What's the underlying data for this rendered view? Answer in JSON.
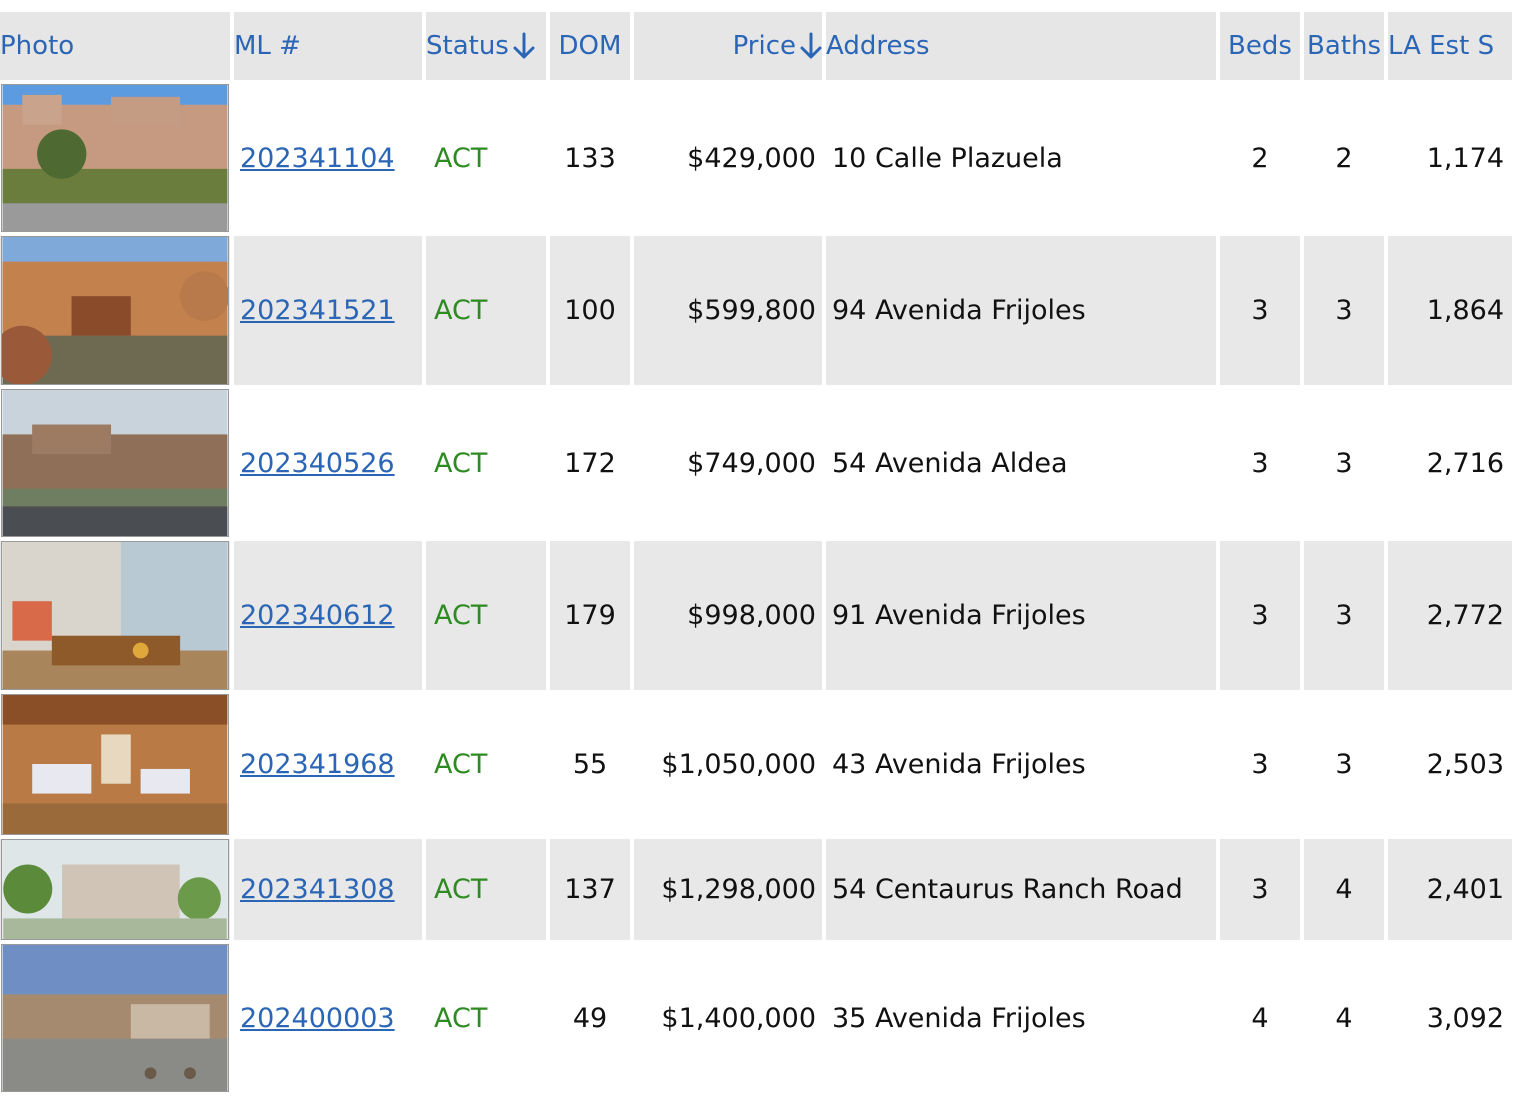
{
  "columns": {
    "photo": "Photo",
    "ml": "ML #",
    "status": "Status",
    "dom": "DOM",
    "price": "Price",
    "address": "Address",
    "beds": "Beds",
    "baths": "Baths",
    "la": "LA Est S"
  },
  "sort_icon": "arrow-down-icon",
  "colors": {
    "link": "#2b66b6",
    "status_active": "#2e8b22",
    "header_bg": "#e6e6e6",
    "row_alt_bg": "#e8e8e8"
  },
  "rows": [
    {
      "ml": "202341104",
      "status": "ACT",
      "dom": "133",
      "price": "$429,000",
      "address": "10 Calle Plazuela",
      "beds": "2",
      "baths": "2",
      "la": "1,174"
    },
    {
      "ml": "202341521",
      "status": "ACT",
      "dom": "100",
      "price": "$599,800",
      "address": "94 Avenida Frijoles",
      "beds": "3",
      "baths": "3",
      "la": "1,864"
    },
    {
      "ml": "202340526",
      "status": "ACT",
      "dom": "172",
      "price": "$749,000",
      "address": "54 Avenida Aldea",
      "beds": "3",
      "baths": "3",
      "la": "2,716"
    },
    {
      "ml": "202340612",
      "status": "ACT",
      "dom": "179",
      "price": "$998,000",
      "address": "91 Avenida Frijoles",
      "beds": "3",
      "baths": "3",
      "la": "2,772"
    },
    {
      "ml": "202341968",
      "status": "ACT",
      "dom": "55",
      "price": "$1,050,000",
      "address": "43 Avenida Frijoles",
      "beds": "3",
      "baths": "3",
      "la": "2,503"
    },
    {
      "ml": "202341308",
      "status": "ACT",
      "dom": "137",
      "price": "$1,298,000",
      "address": "54 Centaurus Ranch Road",
      "beds": "3",
      "baths": "4",
      "la": "2,401"
    },
    {
      "ml": "202400003",
      "status": "ACT",
      "dom": "49",
      "price": "$1,400,000",
      "address": "35 Avenida Frijoles",
      "beds": "4",
      "baths": "4",
      "la": "3,092"
    }
  ]
}
